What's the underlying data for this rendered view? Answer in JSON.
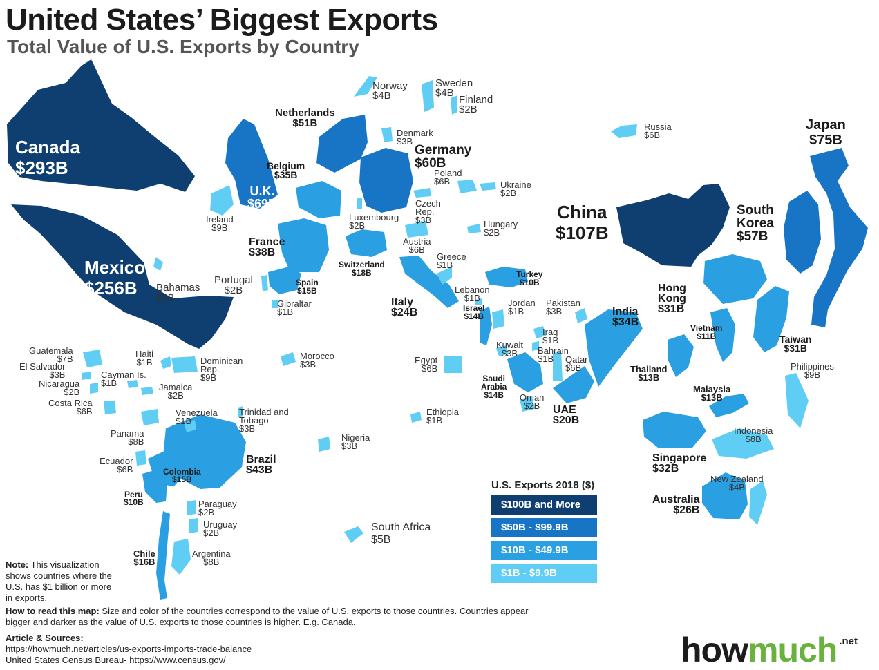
{
  "title": "United States’ Biggest Exports",
  "subtitle": "Total Value of U.S. Exports by Country",
  "colors": {
    "tier1": "#0f3f70",
    "tier2": "#1875c6",
    "tier3": "#2a9fe2",
    "tier4": "#5fcdf4"
  },
  "legend": {
    "title": "U.S. Exports 2018 ($)",
    "items": [
      {
        "label": "$100B and More",
        "color": "#0f3f70"
      },
      {
        "label": "$50B - $99.9B",
        "color": "#1875c6"
      },
      {
        "label": "$10B - $49.9B",
        "color": "#2a9fe2"
      },
      {
        "label": "$1B - $9.9B",
        "color": "#5fcdf4"
      }
    ]
  },
  "countries": {
    "canada": {
      "name": "Canada",
      "value": "$293B"
    },
    "mexico": {
      "name": "Mexico",
      "value": "$256B"
    },
    "china": {
      "name": "China",
      "value": "$107B"
    },
    "japan": {
      "name": "Japan",
      "value": "$75B"
    },
    "uk": {
      "name": "U.K.",
      "value": "$69B"
    },
    "germany": {
      "name": "Germany",
      "value": "$60B"
    },
    "south_korea": {
      "name": "South Korea",
      "name_line1": "South",
      "name_line2": "Korea",
      "value": "$57B"
    },
    "netherlands": {
      "name": "Netherlands",
      "value": "$51B"
    },
    "brazil": {
      "name": "Brazil",
      "value": "$43B"
    },
    "france": {
      "name": "France",
      "value": "$38B"
    },
    "belgium": {
      "name": "Belgium",
      "value": "$35B"
    },
    "india": {
      "name": "India",
      "value": "$34B"
    },
    "singapore": {
      "name": "Singapore",
      "value": "$32B"
    },
    "hong_kong": {
      "name": "Hong Kong",
      "name_line1": "Hong",
      "name_line2": "Kong",
      "value": "$31B"
    },
    "taiwan": {
      "name": "Taiwan",
      "value": "$31B"
    },
    "australia": {
      "name": "Australia",
      "value": "$26B"
    },
    "italy": {
      "name": "Italy",
      "value": "$24B"
    },
    "uae": {
      "name": "UAE",
      "value": "$20B"
    },
    "switzerland": {
      "name": "Switzerland",
      "value": "$18B"
    },
    "chile": {
      "name": "Chile",
      "value": "$16B"
    },
    "colombia": {
      "name": "Colombia",
      "value": "$15B"
    },
    "spain": {
      "name": "Spain",
      "value": "$15B"
    },
    "israel": {
      "name": "Israel",
      "value": "$14B"
    },
    "saudi_arabia": {
      "name": "Saudi Arabia",
      "name_line1": "Saudi",
      "name_line2": "Arabia",
      "value": "$14B"
    },
    "thailand": {
      "name": "Thailand",
      "value": "$13B"
    },
    "malaysia": {
      "name": "Malaysia",
      "value": "$13B"
    },
    "vietnam": {
      "name": "Vietnam",
      "value": "$11B"
    },
    "peru": {
      "name": "Peru",
      "value": "$10B"
    },
    "turkey": {
      "name": "Turkey",
      "value": "$10B"
    },
    "ireland": {
      "name": "Ireland",
      "value": "$9B"
    },
    "dominican_rep": {
      "name_line1": "Dominican",
      "name_line2": "Rep.",
      "value": "$9B"
    },
    "philippines": {
      "name": "Philippines",
      "value": "$9B"
    },
    "argentina": {
      "name": "Argentina",
      "value": "$8B"
    },
    "panama": {
      "name": "Panama",
      "value": "$8B"
    },
    "indonesia": {
      "name": "Indonesia",
      "value": "$8B"
    },
    "guatemala": {
      "name": "Guatemala",
      "value": "$7B"
    },
    "russia": {
      "name": "Russia",
      "value": "$6B"
    },
    "poland": {
      "name": "Poland",
      "value": "$6B"
    },
    "austria": {
      "name": "Austria",
      "value": "$6B"
    },
    "egypt": {
      "name": "Egypt",
      "value": "$6B"
    },
    "qatar": {
      "name": "Qatar",
      "value": "$6B"
    },
    "costa_rica": {
      "name": "Costa Rica",
      "value": "$6B"
    },
    "ecuador": {
      "name": "Ecuador",
      "value": "$6B"
    },
    "south_africa": {
      "name": "South Africa",
      "value": "$5B"
    },
    "norway": {
      "name": "Norway",
      "value": "$4B"
    },
    "sweden": {
      "name": "Sweden",
      "value": "$4B"
    },
    "new_zealand": {
      "name": "New Zealand",
      "value": "$4B"
    },
    "denmark": {
      "name": "Denmark",
      "value": "$3B"
    },
    "czech_rep": {
      "name_line1": "Czech",
      "name_line2": "Rep.",
      "value": "$3B"
    },
    "bahamas": {
      "name": "Bahamas",
      "value": "$3B"
    },
    "el_salvador": {
      "name": "El Salvador",
      "value": "$3B"
    },
    "trinidad_tobago": {
      "name_line1": "Trinidad and",
      "name_line2": "Tobago",
      "value": "$3B"
    },
    "nigeria": {
      "name": "Nigeria",
      "value": "$3B"
    },
    "morocco": {
      "name": "Morocco",
      "value": "$3B"
    },
    "kuwait": {
      "name": "Kuwait",
      "value": "$3B"
    },
    "pakistan": {
      "name": "Pakistan",
      "value": "$3B"
    },
    "finland": {
      "name": "Finland",
      "value": "$2B"
    },
    "ukraine": {
      "name": "Ukraine",
      "value": "$2B"
    },
    "luxembourg": {
      "name": "Luxembourg",
      "value": "$2B"
    },
    "hungary": {
      "name": "Hungary",
      "value": "$2B"
    },
    "portugal": {
      "name": "Portugal",
      "value": "$2B"
    },
    "nicaragua": {
      "name": "Nicaragua",
      "value": "$2B"
    },
    "jamaica": {
      "name": "Jamaica",
      "value": "$2B"
    },
    "paraguay": {
      "name": "Paraguay",
      "value": "$2B"
    },
    "uruguay": {
      "name": "Uruguay",
      "value": "$2B"
    },
    "oman": {
      "name": "Oman",
      "value": "$2B"
    },
    "greece": {
      "name": "Greece",
      "value": "$1B"
    },
    "lebanon": {
      "name": "Lebanon",
      "value": "$1B"
    },
    "jordan": {
      "name": "Jordan",
      "value": "$1B"
    },
    "iraq": {
      "name": "Iraq",
      "value": "$1B"
    },
    "bahrain": {
      "name": "Bahrain",
      "value": "$1B"
    },
    "gibraltar": {
      "name": "Gibraltar",
      "value": "$1B"
    },
    "haiti": {
      "name": "Haiti",
      "value": "$1B"
    },
    "cayman": {
      "name": "Cayman Is.",
      "value": "$1B"
    },
    "venezuela": {
      "name": "Venezuela",
      "value": "$1B"
    },
    "ethiopia": {
      "name": "Ethiopia",
      "value": "$1B"
    }
  },
  "note": {
    "label": "Note:",
    "text": "This visualization shows countries where the U.S. has $1 billion or more in exports."
  },
  "how_to_read": {
    "label": "How to read this map:",
    "text": "Size and color of the countries correspond to the value of U.S. exports to those countries. Countries appear bigger and darker as the value of U.S. exports to those countries is higher. E.g. Canada."
  },
  "sources": {
    "label": "Article & Sources:",
    "line1": "https://howmuch.net/articles/us-exports-imports-trade-balance",
    "line2": "United States Census Bureau- https://www.census.gov/"
  },
  "logo": {
    "part1": "how",
    "part2": "much",
    "tld": ".net"
  }
}
